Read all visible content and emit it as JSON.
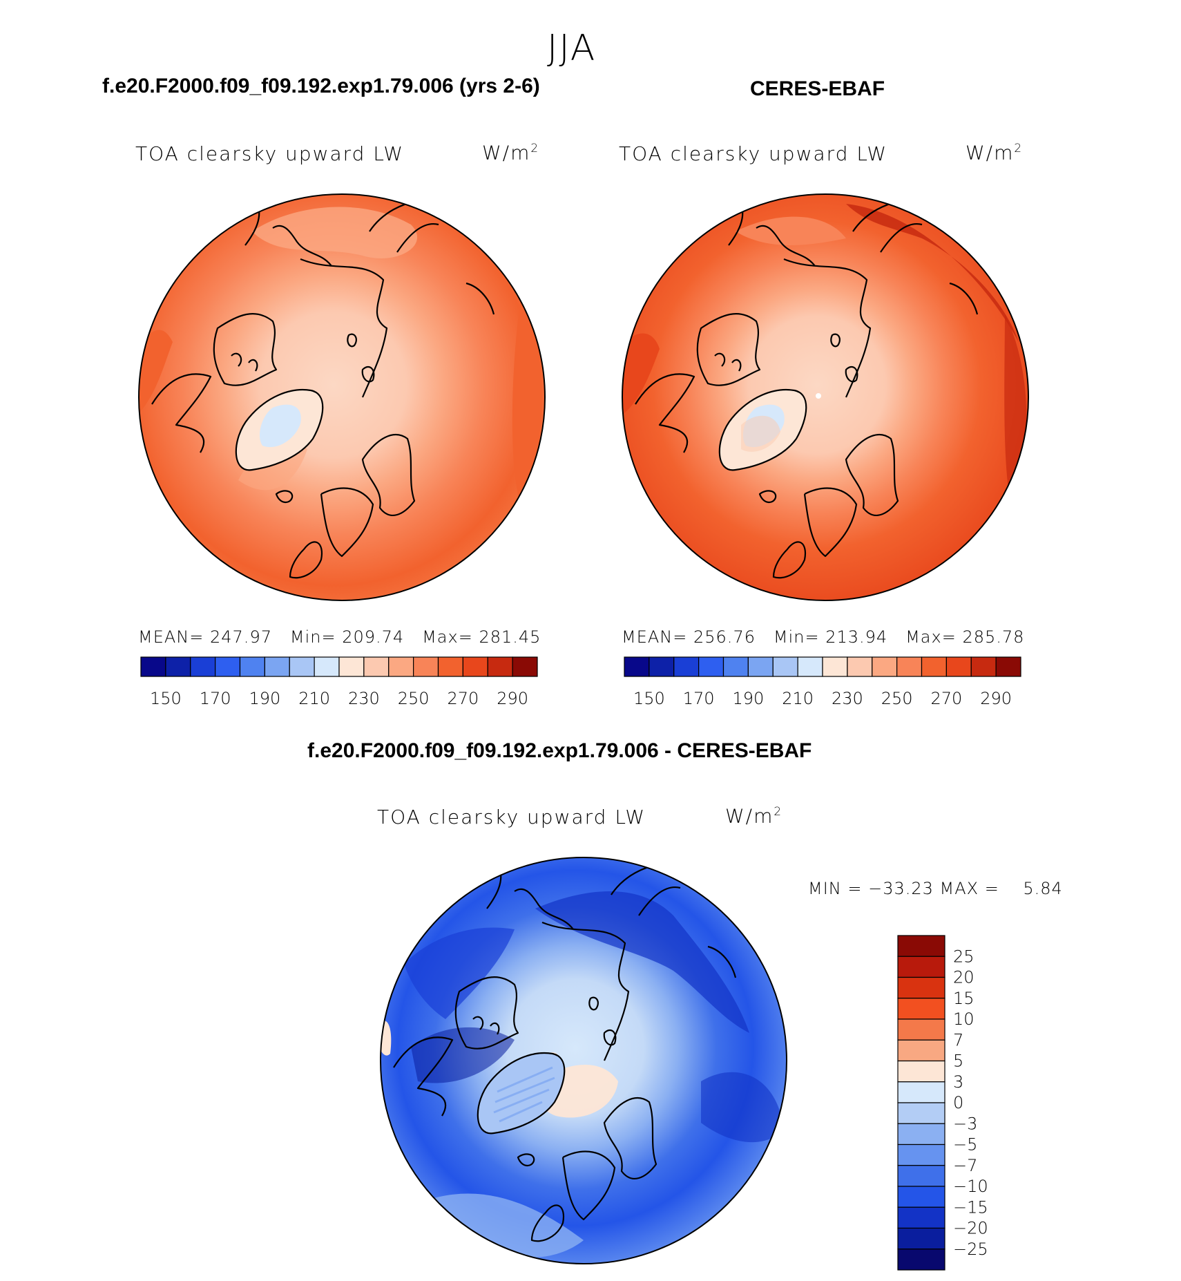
{
  "season": "JJA",
  "panels": {
    "model": {
      "case_title": "f.e20.F2000.f09_f09.192.exp1.79.006 (yrs 2-6)",
      "variable": "TOA clearsky upward LW",
      "units_base": "W/m",
      "units_exp": "2",
      "mean_label": "MEAN=",
      "mean_value": "247.97",
      "min_label": "Min=",
      "min_value": "209.74",
      "max_label": "Max=",
      "max_value": "281.45"
    },
    "obs": {
      "case_title": "CERES-EBAF",
      "variable": "TOA clearsky upward LW",
      "units_base": "W/m",
      "units_exp": "2",
      "mean_label": "MEAN=",
      "mean_value": "256.76",
      "min_label": "Min=",
      "min_value": "213.94",
      "max_label": "Max=",
      "max_value": "285.78"
    },
    "diff": {
      "case_title": "f.e20.F2000.f09_f09.192.exp1.79.006 - CERES-EBAF",
      "variable": "TOA clearsky upward LW",
      "units_base": "W/m",
      "units_exp": "2",
      "minmax_text": "MIN = −33.23 MAX =    5.84"
    }
  },
  "chart_data": [
    {
      "type": "heatmap",
      "projection": "north polar stereographic",
      "title": "f.e20.F2000.f09_f09.192.exp1.79.006 (yrs 2-6)",
      "subtitle": "TOA clearsky upward LW",
      "units": "W/m2",
      "mean": 247.97,
      "min": 209.74,
      "max": 281.45,
      "colorbar_ticks": [
        "150",
        "170",
        "190",
        "210",
        "230",
        "250",
        "270",
        "290"
      ],
      "colorbar_colors": [
        "#08088a",
        "#0d21a8",
        "#1a3fd6",
        "#2e5ff0",
        "#4f82f0",
        "#7ba5f2",
        "#a9c6f5",
        "#d6e8fb",
        "#fde6d6",
        "#fcc9b0",
        "#fba882",
        "#f88458",
        "#f2622e",
        "#e8471c",
        "#c72a10",
        "#8a0a05"
      ]
    },
    {
      "type": "heatmap",
      "projection": "north polar stereographic",
      "title": "CERES-EBAF",
      "subtitle": "TOA clearsky upward LW",
      "units": "W/m2",
      "mean": 256.76,
      "min": 213.94,
      "max": 285.78,
      "colorbar_ticks": [
        "150",
        "170",
        "190",
        "210",
        "230",
        "250",
        "270",
        "290"
      ],
      "colorbar_colors": [
        "#08088a",
        "#0d21a8",
        "#1a3fd6",
        "#2e5ff0",
        "#4f82f0",
        "#7ba5f2",
        "#a9c6f5",
        "#d6e8fb",
        "#fde6d6",
        "#fcc9b0",
        "#fba882",
        "#f88458",
        "#f2622e",
        "#e8471c",
        "#c72a10",
        "#8a0a05"
      ]
    },
    {
      "type": "heatmap",
      "projection": "north polar stereographic",
      "title": "f.e20.F2000.f09_f09.192.exp1.79.006 - CERES-EBAF",
      "subtitle": "TOA clearsky upward LW",
      "units": "W/m2",
      "min": -33.23,
      "max": 5.84,
      "colorbar_ticks": [
        "25",
        "20",
        "15",
        "10",
        "7",
        "5",
        "3",
        "0",
        "−3",
        "−5",
        "−7",
        "−10",
        "−15",
        "−20",
        "−25"
      ],
      "colorbar_colors": [
        "#8a0a05",
        "#b81a0c",
        "#d93310",
        "#f25020",
        "#f4794a",
        "#f8a882",
        "#fde6d6",
        "#d6e8fb",
        "#b3cdf5",
        "#8bb0f2",
        "#6693f0",
        "#3f70ea",
        "#2455e8",
        "#1333c6",
        "#0a1e9e",
        "#08086e"
      ]
    }
  ]
}
